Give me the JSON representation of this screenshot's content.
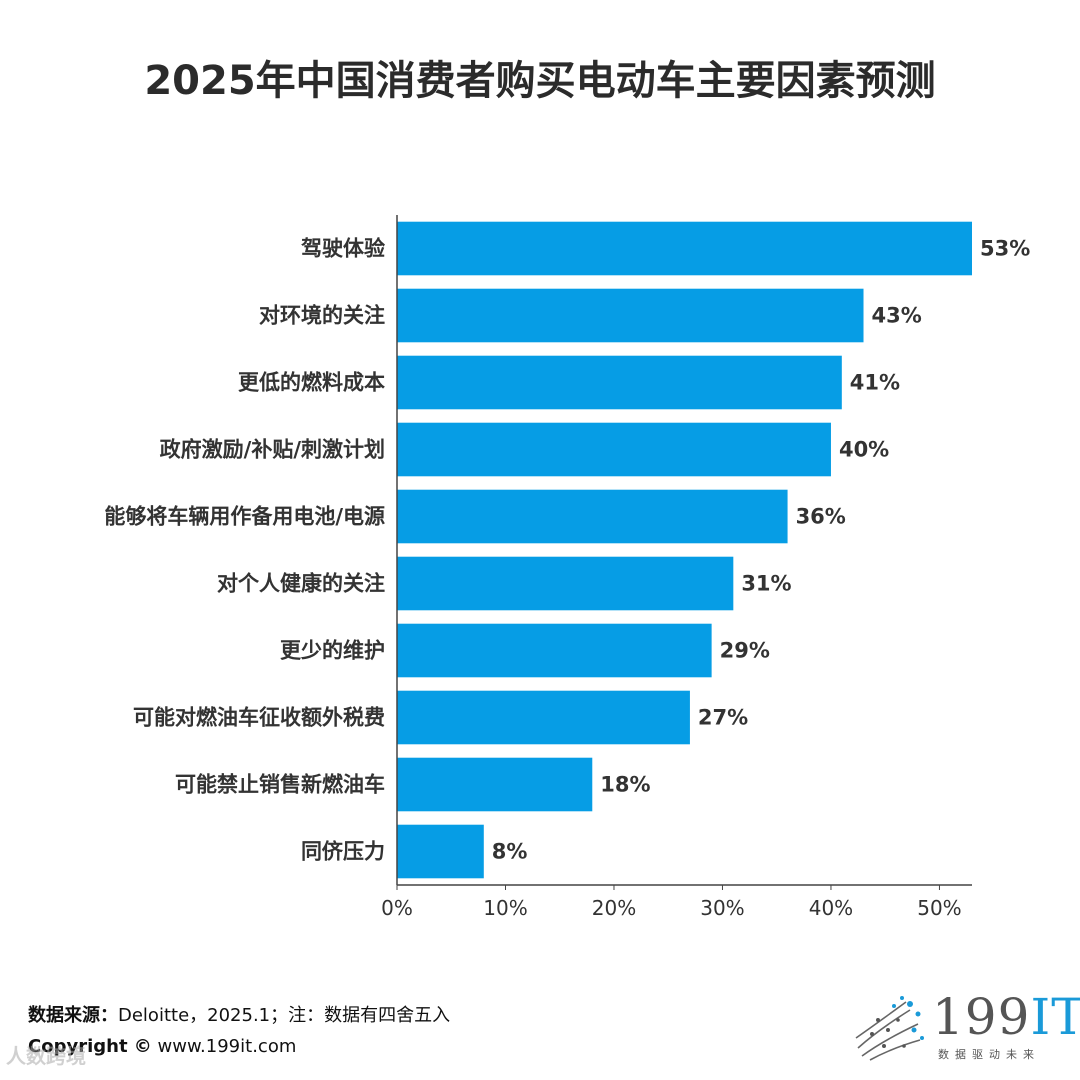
{
  "title": "2025年中国消费者购买电动车主要因素预测",
  "chart_data": {
    "type": "bar",
    "orientation": "horizontal",
    "title": "2025年中国消费者购买电动车主要因素预测",
    "categories": [
      "驾驶体验",
      "对环境的关注",
      "更低的燃料成本",
      "政府激励/补贴/刺激计划",
      "能够将车辆用作备用电池/电源",
      "对个人健康的关注",
      "更少的维护",
      "可能对燃油车征收额外税费",
      "可能禁止销售新燃油车",
      "同侪压力"
    ],
    "values": [
      53,
      43,
      41,
      40,
      36,
      31,
      29,
      27,
      18,
      8
    ],
    "value_labels": [
      "53%",
      "43%",
      "41%",
      "40%",
      "36%",
      "31%",
      "29%",
      "27%",
      "18%",
      "8%"
    ],
    "xlim": [
      0,
      53
    ],
    "ticks": [
      0,
      10,
      20,
      30,
      40,
      50
    ],
    "tick_labels": [
      "0%",
      "10%",
      "20%",
      "30%",
      "40%",
      "50%"
    ],
    "bar_color": "#069de5",
    "grid": false,
    "legend": "none"
  },
  "footer": {
    "source_prefix": "数据来源：",
    "source_text": "Deloitte，2025.1；注：数据有四舍五入",
    "copyright_label": "Copyright ©",
    "copyright_url": "www.199it.com",
    "watermark": "人数跨境"
  },
  "logo": {
    "text_num": "199",
    "text_it": "IT",
    "tagline": "数据驱动未来",
    "accent_color": "#1a9ad8"
  }
}
